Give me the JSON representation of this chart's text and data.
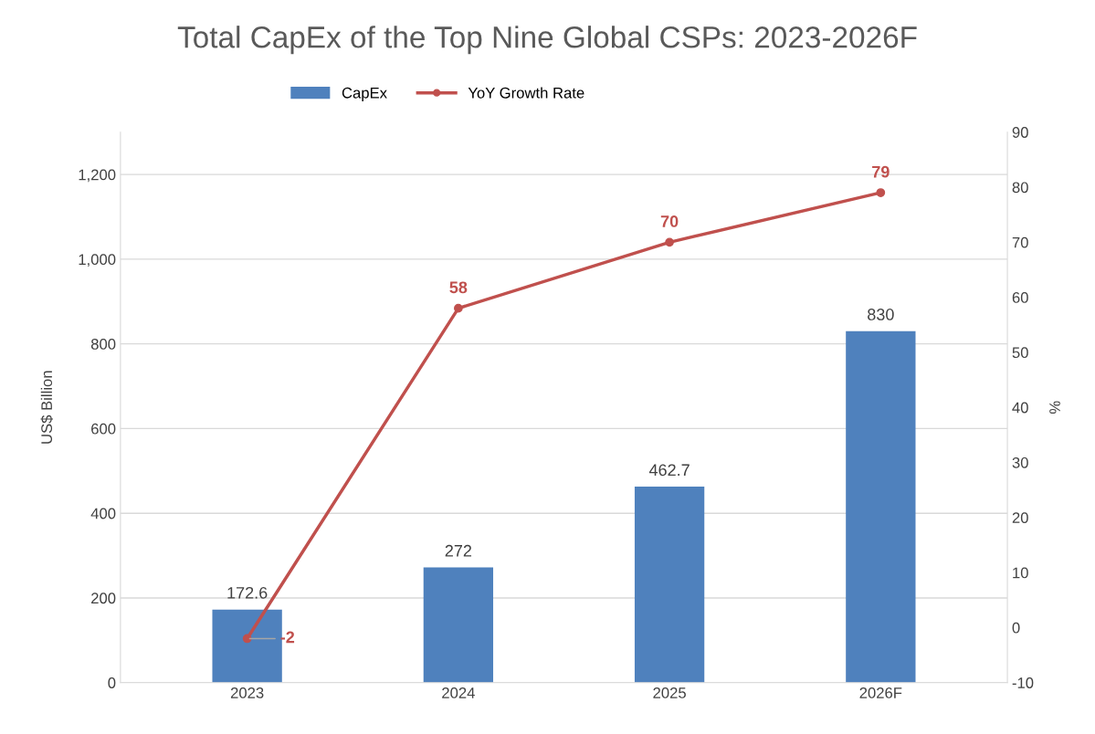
{
  "chart_data": {
    "type": "bar",
    "title": "Total CapEx of the Top Nine Global CSPs: 2023-2026F",
    "categories": [
      "2023",
      "2024",
      "2025",
      "2026F"
    ],
    "series": [
      {
        "name": "CapEx",
        "color": "#4f81bd",
        "values": [
          172.6,
          272,
          462.7,
          830
        ]
      },
      {
        "name": "YoY Growth Rate",
        "type": "line",
        "axis": "y2",
        "color": "#c0504d",
        "values": [
          -2,
          58,
          70,
          79
        ]
      }
    ],
    "ylabel": "US$ Billion",
    "y2label": "%",
    "ylim": [
      0,
      1300
    ],
    "yticks": [
      0,
      200,
      400,
      600,
      800,
      {
        "value": 1000,
        "label": "1,000"
      },
      {
        "value": 1200,
        "label": "1,200"
      }
    ],
    "y2lim": [
      -10,
      90
    ],
    "y2ticks": [
      -10,
      0,
      10,
      20,
      30,
      40,
      50,
      60,
      70,
      80,
      90
    ],
    "grid": "y",
    "legend": "top",
    "marker": "circle",
    "line_style": "solid",
    "data_labels": true
  }
}
